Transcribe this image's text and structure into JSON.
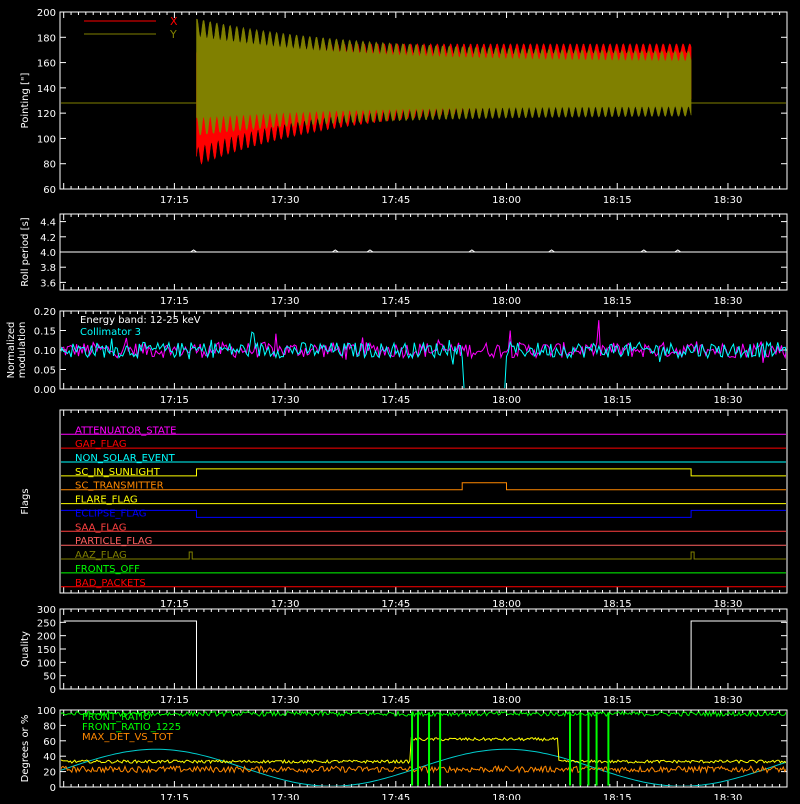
{
  "time_axis": {
    "ticks": [
      "17:15",
      "17:30",
      "17:45",
      "18:00",
      "18:15",
      "18:30"
    ],
    "tick_minutes": [
      15,
      30,
      45,
      60,
      75,
      90
    ],
    "start_minute": -0.5,
    "end_minute": 98
  },
  "chart_data": [
    {
      "type": "line",
      "name_key": "pointing",
      "ylabel": "Pointing [\"]",
      "ylim": [
        60,
        200
      ],
      "yticks": [
        60,
        80,
        100,
        120,
        140,
        160,
        180,
        200
      ],
      "legend": "top-left",
      "series": [
        {
          "name": "X",
          "color": "#ff0000"
        },
        {
          "name": "Y",
          "color": "#808000"
        }
      ],
      "baseline": 128,
      "active_start": "17:18",
      "active_end": "18:25",
      "x_envelope": {
        "min_start": 78,
        "max_start": 175,
        "min_end": 128,
        "max_end": 175
      },
      "y_envelope": {
        "min_start": 102,
        "max_start": 195,
        "min_end": 118,
        "max_end": 168
      },
      "oscillation_period_min": 0.9
    },
    {
      "type": "line",
      "name_key": "roll",
      "ylabel": "Roll period [s]",
      "ylim": [
        3.5,
        4.5
      ],
      "yticks": [
        3.6,
        3.8,
        4.0,
        4.2,
        4.4
      ],
      "value": 4.0,
      "series": [
        {
          "name": "",
          "color": "#ffffff"
        }
      ]
    },
    {
      "type": "line",
      "name_key": "modulation",
      "ylabel": "Normalized modulation",
      "ylim": [
        0.0,
        0.2
      ],
      "yticks": [
        0.0,
        0.05,
        0.1,
        0.15,
        0.2
      ],
      "legend": "top-left",
      "annotation": "Energy band: 12-25 keV",
      "series": [
        {
          "name": "Collimator 3",
          "color": "#00ffff"
        },
        {
          "name": "",
          "color": "#ff00ff"
        }
      ],
      "mean": 0.1,
      "dropout_start": "17:54",
      "dropout_end": "18:00"
    },
    {
      "type": "line",
      "name_key": "flags",
      "ylabel": "Flags",
      "flags": [
        {
          "label": "ATTENUATOR_STATE",
          "color": "#ff00ff"
        },
        {
          "label": "GAP_FLAG",
          "color": "#ff0000"
        },
        {
          "label": "NON_SOLAR_EVENT",
          "color": "#00ffff"
        },
        {
          "label": "SC_IN_SUNLIGHT",
          "color": "#ffff00",
          "high": [
            [
              "17:18",
              "18:25"
            ]
          ],
          "inverted": false
        },
        {
          "label": "SC_TRANSMITTER",
          "color": "#ff8800",
          "high": [
            [
              "17:54",
              "18:00"
            ]
          ],
          "inverted": false
        },
        {
          "label": "FLARE_FLAG",
          "color": "#ffff00"
        },
        {
          "label": "ECLIPSE_FLAG",
          "color": "#0000ff",
          "high": [
            [
              "17:18",
              "18:25"
            ]
          ],
          "inverted": true
        },
        {
          "label": "SAA_FLAG",
          "color": "#ff4040"
        },
        {
          "label": "PARTICLE_FLAG",
          "color": "#ff6060"
        },
        {
          "label": "AAZ_FLAG",
          "color": "#808000",
          "spikes": [
            "17:17",
            "18:25"
          ]
        },
        {
          "label": "FRONTS_OFF",
          "color": "#00ff00"
        },
        {
          "label": "BAD_PACKETS",
          "color": "#ff0000",
          "spikes": [
            "18:39"
          ]
        }
      ]
    },
    {
      "type": "line",
      "name_key": "quality",
      "ylabel": "Quality",
      "ylim": [
        0,
        300
      ],
      "yticks": [
        0,
        50,
        100,
        150,
        200,
        250,
        300
      ],
      "series": [
        {
          "name": "",
          "color": "#ffffff"
        }
      ],
      "segments": [
        {
          "from": "17:00",
          "to": "17:18",
          "value": 255
        },
        {
          "from": "17:18",
          "to": "18:25",
          "value": 0
        },
        {
          "from": "18:25",
          "to": "18:40",
          "value": 255
        }
      ]
    },
    {
      "type": "line",
      "name_key": "ratios",
      "ylabel": "Degrees or %",
      "ylim": [
        0,
        100
      ],
      "yticks": [
        0,
        20,
        40,
        60,
        80,
        100
      ],
      "legend": "top-left",
      "series": [
        {
          "name": "FRONT_RATIO",
          "color": "#00ff00",
          "level": 95
        },
        {
          "name": "FRONT_RATIO_1225",
          "color": "#00ff00",
          "level": 95
        },
        {
          "name": "MAX_DET_VS_TOT",
          "color": "#ff8800",
          "level": 23
        },
        {
          "name": "",
          "color": "#ffff00",
          "level_low": 33,
          "level_high": 62
        },
        {
          "name": "",
          "color": "#00cccc"
        }
      ],
      "high_start": "17:47",
      "high_end": "18:07"
    }
  ]
}
